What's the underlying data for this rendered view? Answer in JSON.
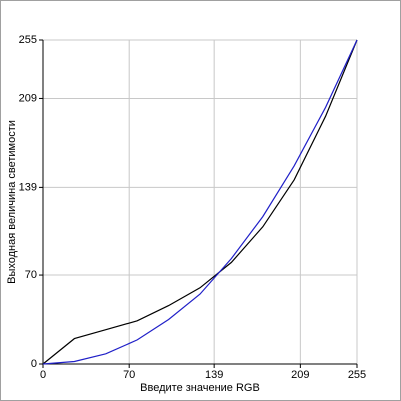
{
  "chart_data": {
    "type": "line",
    "x_label": "Введите значение RGB",
    "y_label": "Выходная величина светимости",
    "x": [
      0,
      25.5,
      51,
      76.5,
      102,
      127.5,
      153,
      178.5,
      204,
      229.5,
      255
    ],
    "series": [
      {
        "color": "#000000",
        "values": [
          0,
          20,
          27,
          34,
          46,
          60,
          80,
          108,
          145,
          195,
          255
        ]
      },
      {
        "color": "#2020c8",
        "values": [
          0,
          2,
          8,
          19,
          35,
          55,
          83,
          116,
          156,
          202,
          255
        ]
      }
    ],
    "xlim": [
      0,
      255
    ],
    "xticks": [
      0,
      70,
      139,
      209,
      255
    ],
    "ylim": [
      0,
      255
    ],
    "yticks": [
      0,
      70,
      139,
      209,
      255
    ],
    "grid": true
  }
}
